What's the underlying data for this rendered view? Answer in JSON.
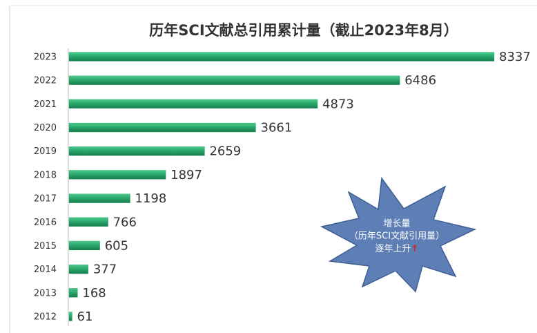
{
  "chart_data": {
    "type": "barh",
    "title": "历年SCI文献总引用累计量（截止2023年8月）",
    "categories": [
      "2023",
      "2022",
      "2021",
      "2020",
      "2019",
      "2018",
      "2017",
      "2016",
      "2015",
      "2014",
      "2013",
      "2012"
    ],
    "values": [
      8337,
      6486,
      4873,
      3661,
      2659,
      1897,
      1198,
      766,
      605,
      377,
      168,
      61
    ],
    "color": "#28a56a",
    "annotation": {
      "lines": [
        "增长量",
        "（历年SCI文献引用量）",
        "逐年上升"
      ],
      "arrow": "↑",
      "arrow_color": "#e0201b",
      "color": "#5d7fb6"
    }
  }
}
